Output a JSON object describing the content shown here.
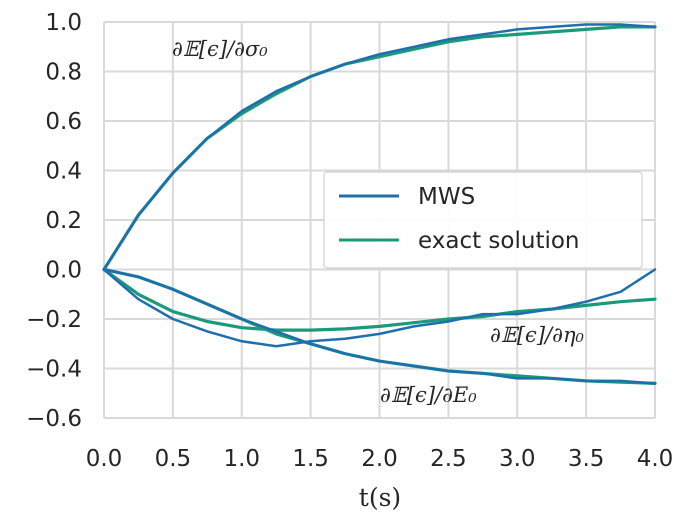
{
  "chart_data": {
    "type": "line",
    "title": "",
    "xlabel": "t(s)",
    "ylabel": "",
    "xlim": [
      0.0,
      4.0
    ],
    "ylim": [
      -0.6,
      1.0
    ],
    "xticks": [
      "0.0",
      "0.5",
      "1.0",
      "1.5",
      "2.0",
      "2.5",
      "3.0",
      "3.5",
      "4.0"
    ],
    "yticks": [
      "1.0",
      "0.8",
      "0.6",
      "0.4",
      "0.2",
      "0.0",
      "−0.2",
      "−0.4",
      "−0.6"
    ],
    "grid": true,
    "legend_position": "center-right",
    "legend": [
      {
        "label": "MWS",
        "color": "#1f6fae"
      },
      {
        "label": "exact solution",
        "color": "#1a9a7a"
      }
    ],
    "annotations": [
      {
        "text": "∂𝔼[ϵ]/∂σ₀"
      },
      {
        "text": "∂𝔼[ϵ]/∂η₀"
      },
      {
        "text": "∂𝔼[ϵ]/∂E₀"
      }
    ],
    "series": [
      {
        "name": "MWS",
        "color": "#1f6fae",
        "x": [
          0.0,
          0.25,
          0.5,
          0.75,
          1.0,
          1.25,
          1.5,
          1.75,
          2.0,
          2.25,
          2.5,
          2.75,
          3.0,
          3.25,
          3.5,
          3.75,
          4.0
        ],
        "y": [
          0.0,
          0.22,
          0.39,
          0.53,
          0.64,
          0.72,
          0.78,
          0.83,
          0.87,
          0.9,
          0.93,
          0.95,
          0.97,
          0.98,
          0.99,
          0.99,
          0.98
        ]
      },
      {
        "name": "MWS",
        "color": "#1f6fae",
        "x": [
          0.0,
          0.25,
          0.5,
          0.75,
          1.0,
          1.25,
          1.5,
          1.75,
          2.0,
          2.25,
          2.5,
          2.75,
          3.0,
          3.25,
          3.5,
          3.75,
          4.0
        ],
        "y": [
          0.0,
          -0.12,
          -0.2,
          -0.25,
          -0.29,
          -0.31,
          -0.29,
          -0.28,
          -0.26,
          -0.23,
          -0.21,
          -0.18,
          -0.18,
          -0.16,
          -0.13,
          -0.09,
          0.0
        ]
      },
      {
        "name": "MWS",
        "color": "#1f6fae",
        "x": [
          0.0,
          0.25,
          0.5,
          0.75,
          1.0,
          1.25,
          1.5,
          1.75,
          2.0,
          2.25,
          2.5,
          2.75,
          3.0,
          3.25,
          3.5,
          3.75,
          4.0
        ],
        "y": [
          0.0,
          -0.03,
          -0.08,
          -0.14,
          -0.2,
          -0.25,
          -0.3,
          -0.34,
          -0.37,
          -0.39,
          -0.41,
          -0.42,
          -0.44,
          -0.44,
          -0.45,
          -0.45,
          -0.46
        ]
      },
      {
        "name": "exact solution",
        "color": "#1a9a7a",
        "x": [
          0.0,
          0.25,
          0.5,
          0.75,
          1.0,
          1.25,
          1.5,
          1.75,
          2.0,
          2.25,
          2.5,
          2.75,
          3.0,
          3.25,
          3.5,
          3.75,
          4.0
        ],
        "y": [
          0.0,
          0.22,
          0.39,
          0.53,
          0.63,
          0.71,
          0.78,
          0.83,
          0.86,
          0.89,
          0.92,
          0.94,
          0.95,
          0.96,
          0.97,
          0.98,
          0.98
        ]
      },
      {
        "name": "exact solution",
        "color": "#1a9a7a",
        "x": [
          0.0,
          0.25,
          0.5,
          0.75,
          1.0,
          1.25,
          1.5,
          1.75,
          2.0,
          2.25,
          2.5,
          2.75,
          3.0,
          3.25,
          3.5,
          3.75,
          4.0
        ],
        "y": [
          0.0,
          -0.1,
          -0.17,
          -0.21,
          -0.235,
          -0.245,
          -0.245,
          -0.24,
          -0.23,
          -0.215,
          -0.2,
          -0.19,
          -0.17,
          -0.16,
          -0.145,
          -0.13,
          -0.12
        ]
      },
      {
        "name": "exact solution",
        "color": "#1a9a7a",
        "x": [
          0.0,
          0.25,
          0.5,
          0.75,
          1.0,
          1.25,
          1.5,
          1.75,
          2.0,
          2.25,
          2.5,
          2.75,
          3.0,
          3.25,
          3.5,
          3.75,
          4.0
        ],
        "y": [
          0.0,
          -0.03,
          -0.08,
          -0.14,
          -0.2,
          -0.26,
          -0.3,
          -0.34,
          -0.37,
          -0.39,
          -0.41,
          -0.42,
          -0.43,
          -0.44,
          -0.45,
          -0.455,
          -0.46
        ]
      }
    ]
  }
}
